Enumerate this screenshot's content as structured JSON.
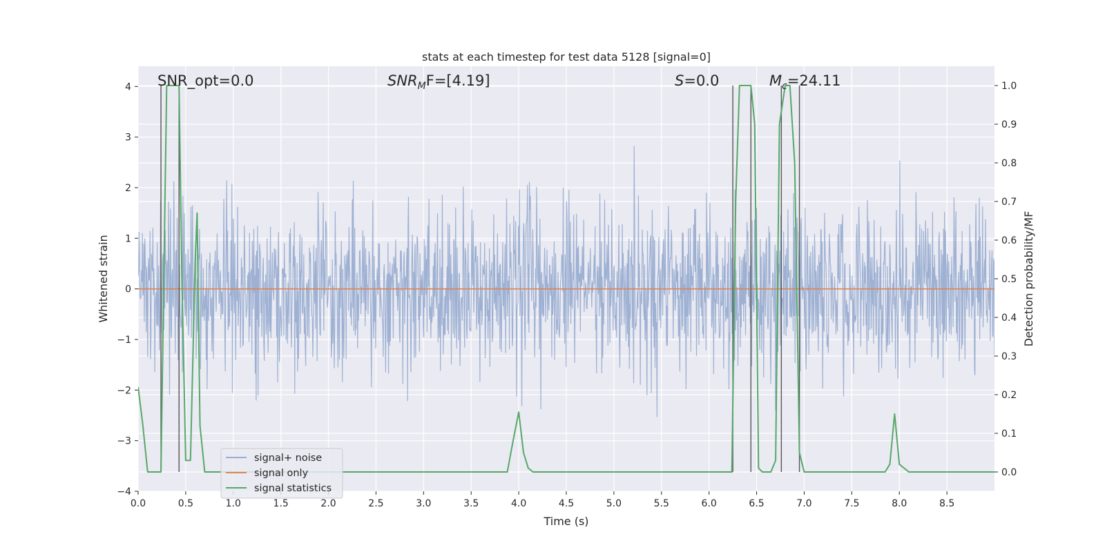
{
  "chart_data": {
    "type": "line",
    "title": "stats at each timestep for test data 5128 [signal=0]",
    "xlabel": "Time (s)",
    "ylabel": "Whitened strain",
    "ylabel_right": "Detection probability/MF",
    "xlim": [
      0.0,
      9.0
    ],
    "ylim": [
      -4.0,
      4.4
    ],
    "ylim_right": [
      -0.05,
      1.05
    ],
    "x_ticks": [
      "0.0",
      "0.5",
      "1.0",
      "1.5",
      "2.0",
      "2.5",
      "3.0",
      "3.5",
      "4.0",
      "4.5",
      "5.0",
      "5.5",
      "6.0",
      "6.5",
      "7.0",
      "7.5",
      "8.0",
      "8.5"
    ],
    "y_ticks": [
      "4",
      "3",
      "2",
      "1",
      "0",
      "−1",
      "−2",
      "−3",
      "−4"
    ],
    "y_ticks_right": [
      "1.0",
      "0.9",
      "0.8",
      "0.7",
      "0.6",
      "0.5",
      "0.4",
      "0.3",
      "0.2",
      "0.1",
      "0.0"
    ],
    "grid": true,
    "legend_position": "lower-left",
    "annotations": {
      "snr_opt": "SNR_opt=0.0",
      "snr_mf_main": "SNR",
      "snr_mf_sub": "M",
      "snr_mf_rest": "F=[4.19]",
      "s_main": "S",
      "s_rest": "=0.0",
      "mc_main": "M",
      "mc_sub": "c",
      "mc_rest": "=24.11"
    },
    "vertical_lines_x": [
      0.24,
      0.43,
      6.25,
      6.44,
      6.76,
      6.95
    ],
    "series": [
      {
        "name": "signal+ noise",
        "color": "#9aaed1",
        "style": "noise",
        "sigma": 0.8,
        "seed": 5128
      },
      {
        "name": "signal only",
        "color": "#dd8452",
        "x": [
          0.0,
          9.0
        ],
        "y": [
          0.0,
          0.0
        ]
      },
      {
        "name": "signal statistics",
        "color": "#55a868",
        "axis": "right",
        "x": [
          0.0,
          0.05,
          0.1,
          0.15,
          0.2,
          0.24,
          0.27,
          0.3,
          0.35,
          0.4,
          0.43,
          0.46,
          0.5,
          0.55,
          0.6,
          0.62,
          0.65,
          0.7,
          0.75,
          0.8,
          0.85,
          0.9,
          1.0,
          1.5,
          2.0,
          2.5,
          3.0,
          3.5,
          3.8,
          3.88,
          3.94,
          4.0,
          4.05,
          4.1,
          4.15,
          4.2,
          4.5,
          5.0,
          5.5,
          6.0,
          6.15,
          6.2,
          6.24,
          6.28,
          6.32,
          6.36,
          6.4,
          6.44,
          6.48,
          6.52,
          6.56,
          6.6,
          6.65,
          6.7,
          6.74,
          6.8,
          6.85,
          6.9,
          6.95,
          7.0,
          7.05,
          7.1,
          7.2,
          7.5,
          7.8,
          7.85,
          7.9,
          7.95,
          8.0,
          8.1,
          8.5,
          9.0
        ],
        "y": [
          0.22,
          0.12,
          0.0,
          0.0,
          0.0,
          0.0,
          0.5,
          1.0,
          1.0,
          1.0,
          1.0,
          0.5,
          0.03,
          0.03,
          0.55,
          0.67,
          0.12,
          0.0,
          0.0,
          0.0,
          0.0,
          0.0,
          0.0,
          0.0,
          0.0,
          0.0,
          0.0,
          0.0,
          0.0,
          0.0,
          0.08,
          0.155,
          0.05,
          0.01,
          0.0,
          0.0,
          0.0,
          0.0,
          0.0,
          0.0,
          0.0,
          0.0,
          0.0,
          0.7,
          1.0,
          1.0,
          1.0,
          1.0,
          0.9,
          0.01,
          0.0,
          0.0,
          0.0,
          0.03,
          0.9,
          1.0,
          1.0,
          0.8,
          0.05,
          0.0,
          0.0,
          0.0,
          0.0,
          0.0,
          0.0,
          0.0,
          0.02,
          0.15,
          0.02,
          0.0,
          0.0,
          0.0
        ]
      }
    ]
  }
}
